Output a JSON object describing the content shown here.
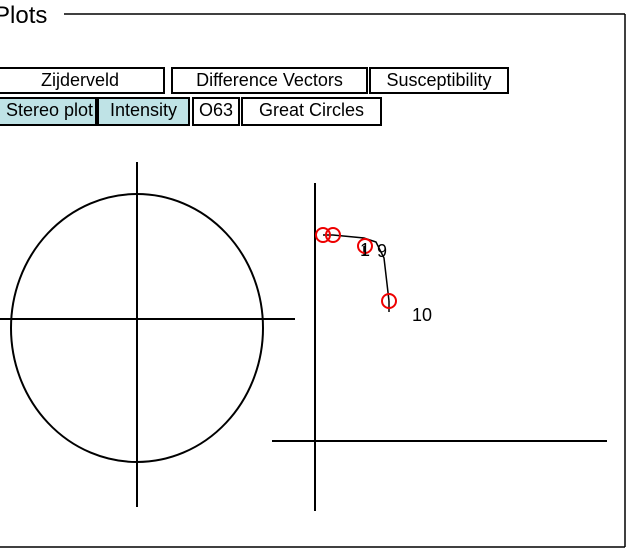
{
  "panel": {
    "title": "Plots"
  },
  "tabs": {
    "row1": [
      "Zijderveld",
      "Difference Vectors",
      "Susceptibility"
    ],
    "row2": [
      "Stereo plot",
      "Intensity",
      "O63",
      "Great Circles"
    ]
  },
  "zijderveld": {
    "point_labels": [
      "1",
      "9",
      "10"
    ]
  }
}
